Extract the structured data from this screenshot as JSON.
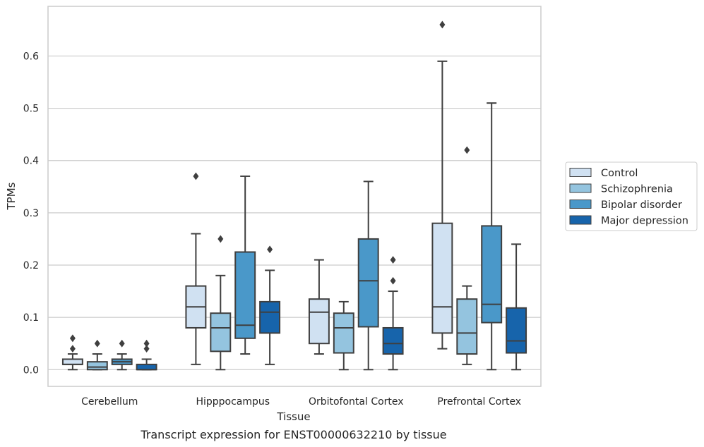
{
  "caption": "Transcript expression for ENST00000632210 by tissue",
  "chart_data": {
    "type": "box",
    "title": "",
    "xlabel": "Tissue",
    "ylabel": "TPMs",
    "ylim": [
      -0.032,
      0.695
    ],
    "yticks": [
      0.0,
      0.1,
      0.2,
      0.3,
      0.4,
      0.5,
      0.6
    ],
    "ytick_labels": [
      "0.0",
      "0.1",
      "0.2",
      "0.3",
      "0.4",
      "0.5",
      "0.6"
    ],
    "grid": "horizontal",
    "legend_placement": "right",
    "categories": [
      "Cerebellum",
      "Hipppocampus",
      "Orbitofontal Cortex",
      "Prefrontal Cortex"
    ],
    "series": [
      {
        "name": "Control",
        "color": "#d0e1f2",
        "boxes": [
          {
            "whislo": 0.0,
            "q1": 0.01,
            "med": 0.01,
            "q3": 0.02,
            "whishi": 0.03,
            "fliers": [
              0.04,
              0.06
            ]
          },
          {
            "whislo": 0.01,
            "q1": 0.08,
            "med": 0.12,
            "q3": 0.16,
            "whishi": 0.26,
            "fliers": [
              0.37
            ]
          },
          {
            "whislo": 0.03,
            "q1": 0.05,
            "med": 0.11,
            "q3": 0.135,
            "whishi": 0.21,
            "fliers": []
          },
          {
            "whislo": 0.04,
            "q1": 0.07,
            "med": 0.12,
            "q3": 0.28,
            "whishi": 0.59,
            "fliers": [
              0.66
            ]
          }
        ]
      },
      {
        "name": "Schizophrenia",
        "color": "#94c4df",
        "boxes": [
          {
            "whislo": 0.0,
            "q1": 0.0,
            "med": 0.005,
            "q3": 0.015,
            "whishi": 0.03,
            "fliers": [
              0.05
            ]
          },
          {
            "whislo": 0.0,
            "q1": 0.035,
            "med": 0.08,
            "q3": 0.108,
            "whishi": 0.18,
            "fliers": [
              0.25
            ]
          },
          {
            "whislo": 0.0,
            "q1": 0.032,
            "med": 0.08,
            "q3": 0.108,
            "whishi": 0.13,
            "fliers": []
          },
          {
            "whislo": 0.01,
            "q1": 0.03,
            "med": 0.07,
            "q3": 0.135,
            "whishi": 0.16,
            "fliers": [
              0.42
            ]
          }
        ]
      },
      {
        "name": "Bipolar disorder",
        "color": "#4a98c9",
        "boxes": [
          {
            "whislo": 0.0,
            "q1": 0.01,
            "med": 0.015,
            "q3": 0.02,
            "whishi": 0.03,
            "fliers": [
              0.05
            ]
          },
          {
            "whislo": 0.03,
            "q1": 0.06,
            "med": 0.085,
            "q3": 0.225,
            "whishi": 0.37,
            "fliers": []
          },
          {
            "whislo": 0.0,
            "q1": 0.082,
            "med": 0.17,
            "q3": 0.25,
            "whishi": 0.36,
            "fliers": []
          },
          {
            "whislo": 0.0,
            "q1": 0.09,
            "med": 0.125,
            "q3": 0.275,
            "whishi": 0.51,
            "fliers": []
          }
        ]
      },
      {
        "name": "Major depression",
        "color": "#1764ab",
        "boxes": [
          {
            "whislo": 0.0,
            "q1": 0.0,
            "med": 0.0,
            "q3": 0.01,
            "whishi": 0.02,
            "fliers": [
              0.04,
              0.05
            ]
          },
          {
            "whislo": 0.01,
            "q1": 0.07,
            "med": 0.11,
            "q3": 0.13,
            "whishi": 0.19,
            "fliers": [
              0.23
            ]
          },
          {
            "whislo": 0.0,
            "q1": 0.03,
            "med": 0.05,
            "q3": 0.08,
            "whishi": 0.15,
            "fliers": [
              0.17,
              0.21
            ]
          },
          {
            "whislo": 0.0,
            "q1": 0.032,
            "med": 0.055,
            "q3": 0.118,
            "whishi": 0.24,
            "fliers": []
          }
        ]
      }
    ]
  }
}
